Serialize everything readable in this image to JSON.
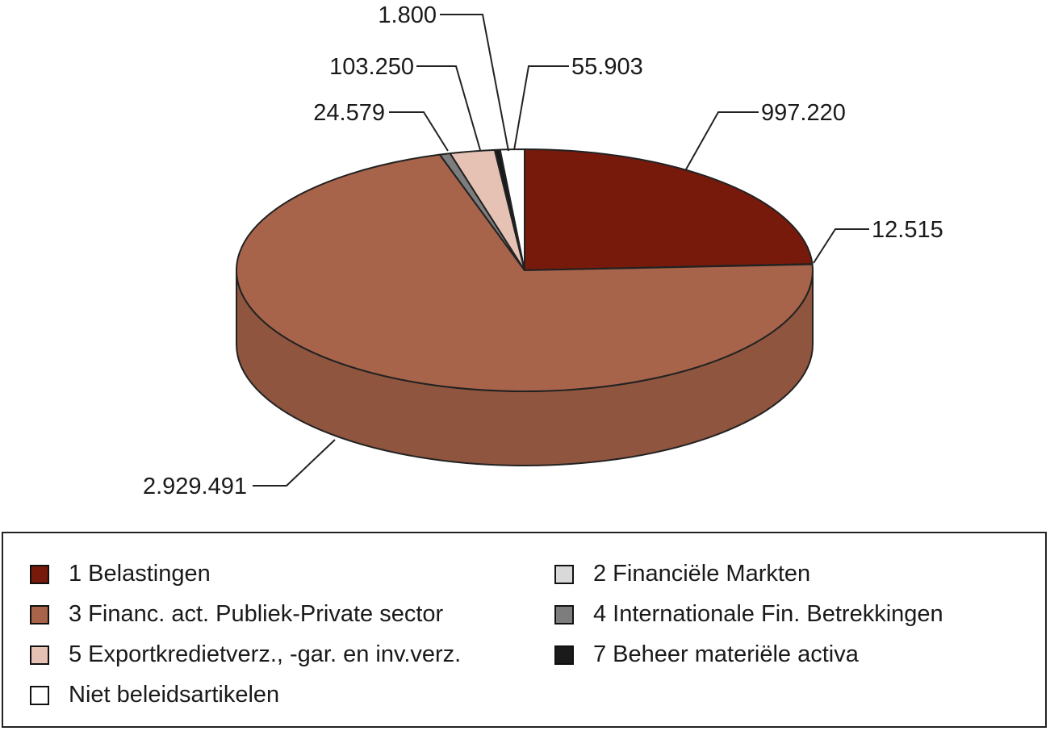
{
  "chart_data": {
    "type": "pie",
    "values": [
      997220,
      1800,
      2929491,
      24579,
      103250,
      12515,
      55903
    ],
    "slices": [
      {
        "name": "1 Belastingen",
        "value": 997220,
        "label": "997.220",
        "color": "#771a0c"
      },
      {
        "name": "2 Financiële Markten",
        "value": 1800,
        "label": "1.800",
        "color": "#d9d9d9"
      },
      {
        "name": "3 Financ. act. Publiek-Private sector",
        "value": 2929491,
        "label": "2.929.491",
        "color": "#a8644a"
      },
      {
        "name": "4 Internationale Fin. Betrekkingen",
        "value": 24579,
        "label": "24.579",
        "color": "#7d7d7d"
      },
      {
        "name": "5 Exportkredietverz., -gar. en inv.verz.",
        "value": 103250,
        "label": "103.250",
        "color": "#e5c2b4"
      },
      {
        "name": "7 Beheer materiële activa",
        "value": 12515,
        "label": "12.515",
        "color": "#1a1a1a"
      },
      {
        "name": "Niet beleidsartikelen",
        "value": 55903,
        "label": "55.903",
        "color": "#ffffff"
      }
    ],
    "legend_position": "bottom"
  }
}
